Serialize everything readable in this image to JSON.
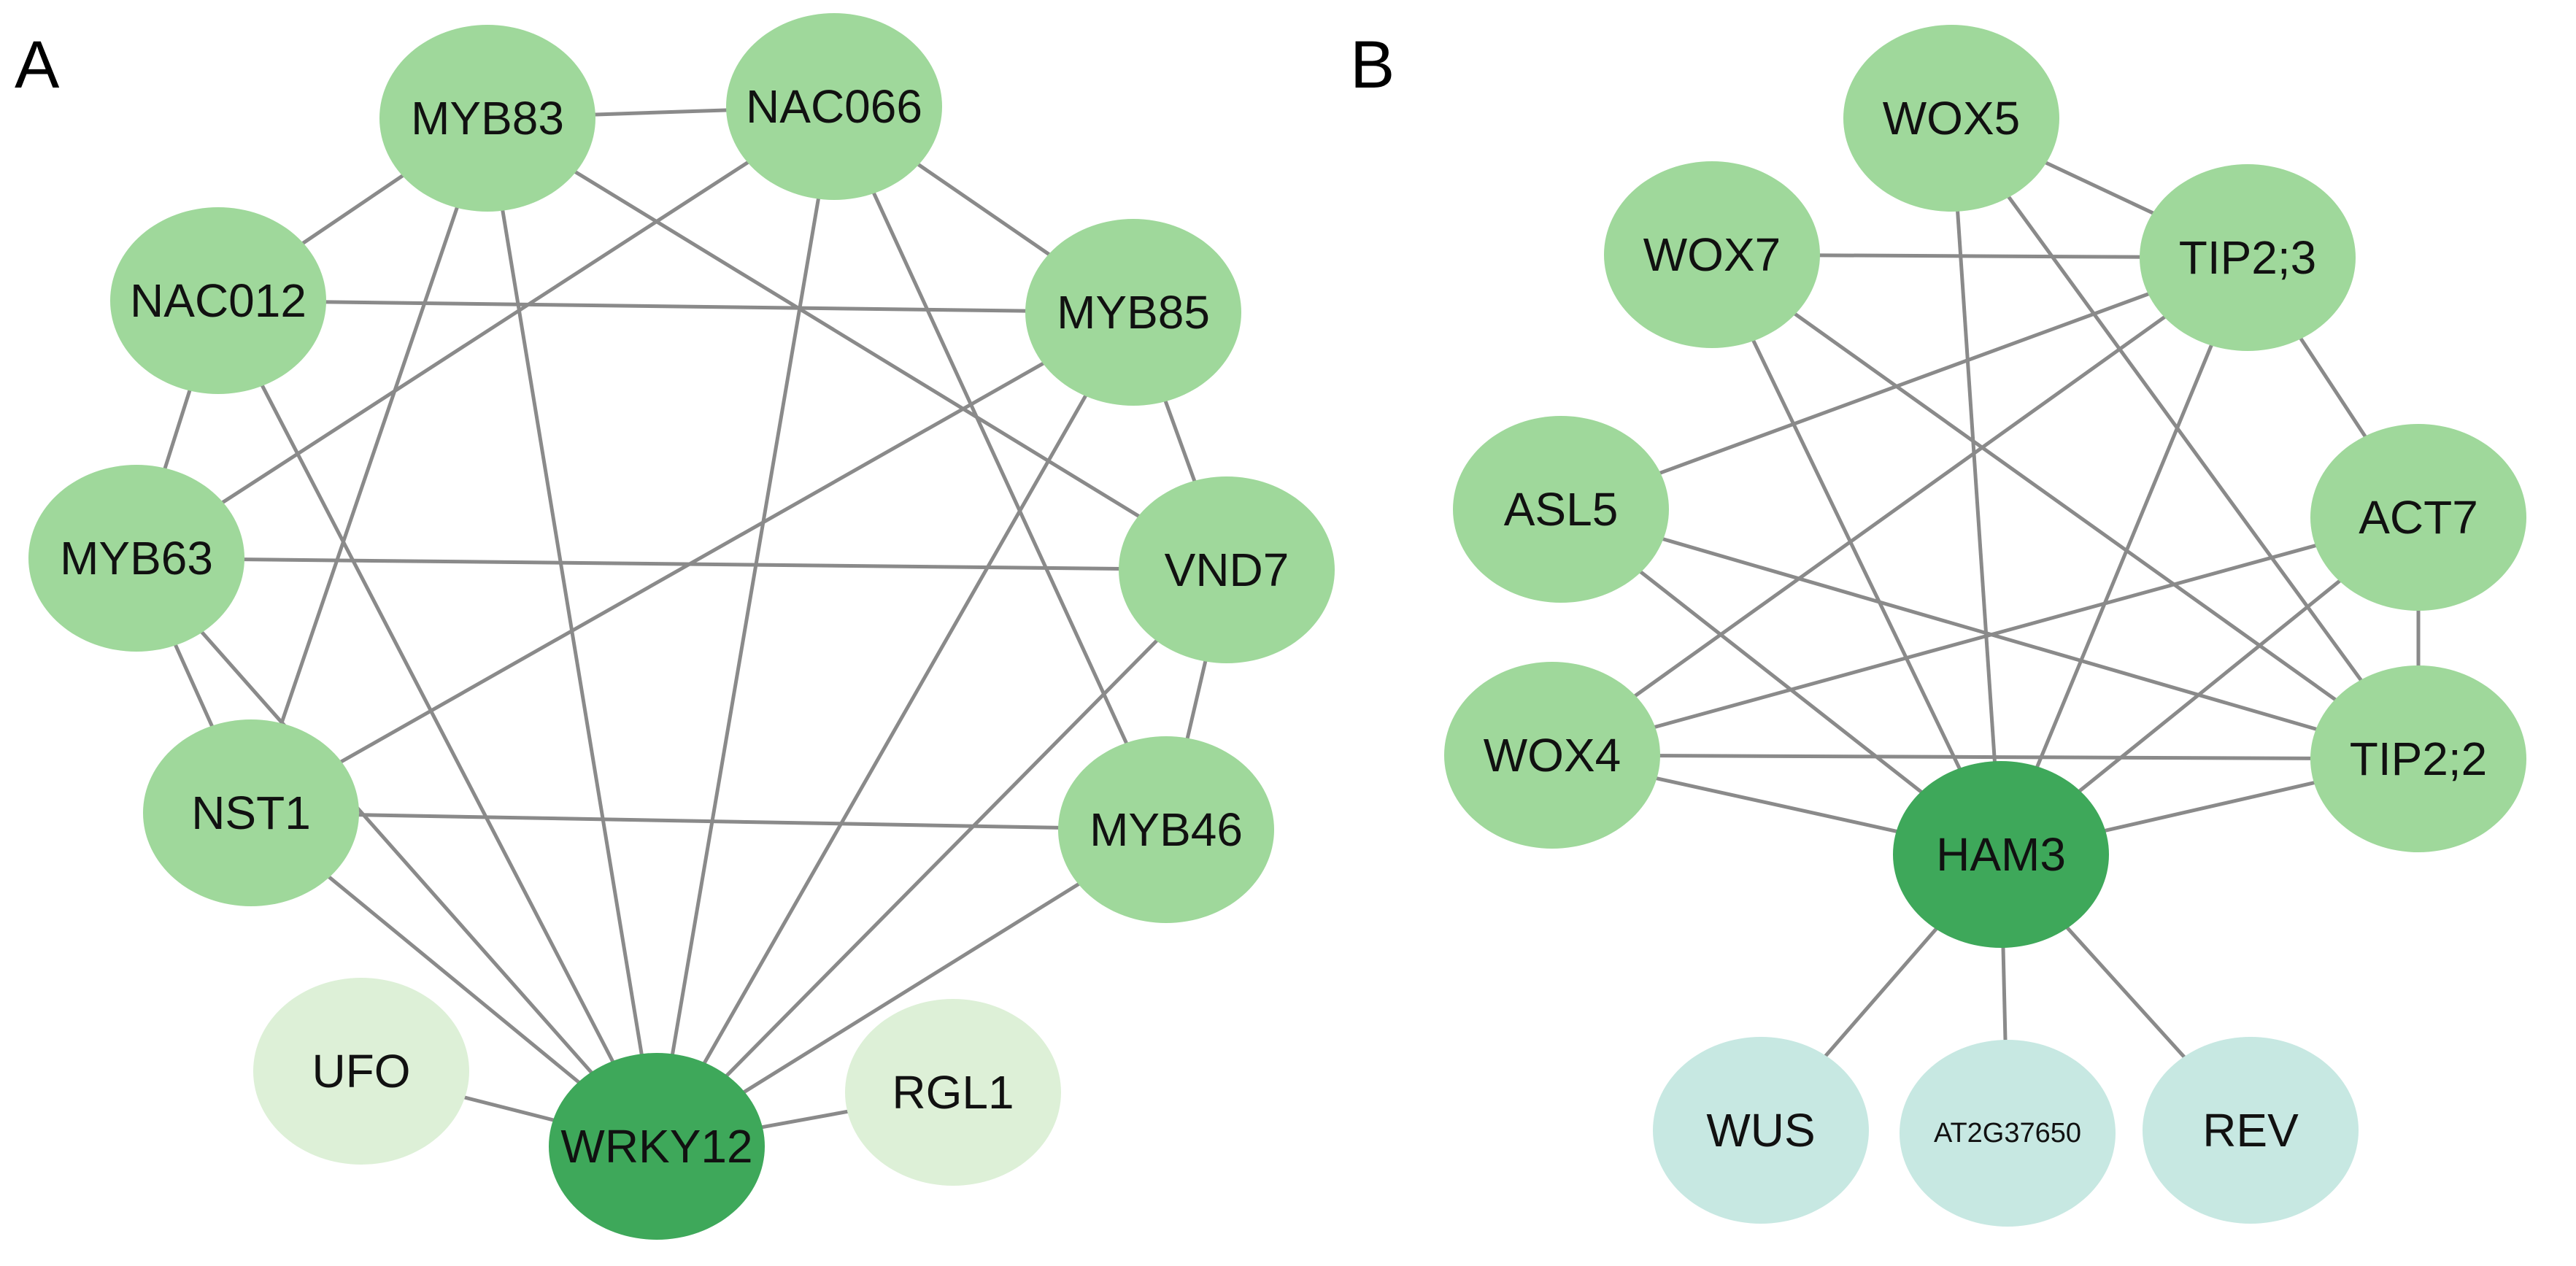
{
  "colors": {
    "node": "#9fd89b",
    "hub": "#3ea85a",
    "pale_green": "#ddf0d7",
    "pale_teal": "#c7e8e2",
    "edge": "#8a8a8a"
  },
  "panels": [
    {
      "label": "A",
      "nodes": [
        {
          "id": "MYB83",
          "type": "node"
        },
        {
          "id": "NAC066",
          "type": "node"
        },
        {
          "id": "NAC012",
          "type": "node"
        },
        {
          "id": "MYB85",
          "type": "node"
        },
        {
          "id": "MYB63",
          "type": "node"
        },
        {
          "id": "VND7",
          "type": "node"
        },
        {
          "id": "NST1",
          "type": "node"
        },
        {
          "id": "MYB46",
          "type": "node"
        },
        {
          "id": "UFO",
          "type": "pale_green"
        },
        {
          "id": "WRKY12",
          "type": "hub"
        },
        {
          "id": "RGL1",
          "type": "pale_green"
        }
      ],
      "edges": [
        [
          "MYB83",
          "NAC066"
        ],
        [
          "MYB83",
          "NAC012"
        ],
        [
          "MYB83",
          "NST1"
        ],
        [
          "MYB83",
          "WRKY12"
        ],
        [
          "MYB83",
          "VND7"
        ],
        [
          "NAC066",
          "MYB63"
        ],
        [
          "NAC066",
          "MYB85"
        ],
        [
          "NAC066",
          "WRKY12"
        ],
        [
          "NAC066",
          "MYB46"
        ],
        [
          "NAC012",
          "MYB85"
        ],
        [
          "NAC012",
          "MYB63"
        ],
        [
          "NAC012",
          "WRKY12"
        ],
        [
          "MYB85",
          "NST1"
        ],
        [
          "MYB85",
          "WRKY12"
        ],
        [
          "MYB85",
          "VND7"
        ],
        [
          "MYB63",
          "VND7"
        ],
        [
          "MYB63",
          "NST1"
        ],
        [
          "MYB63",
          "WRKY12"
        ],
        [
          "VND7",
          "MYB46"
        ],
        [
          "VND7",
          "WRKY12"
        ],
        [
          "MYB46",
          "WRKY12"
        ],
        [
          "NST1",
          "MYB46"
        ],
        [
          "NST1",
          "WRKY12"
        ],
        [
          "UFO",
          "WRKY12"
        ],
        [
          "RGL1",
          "WRKY12"
        ]
      ]
    },
    {
      "label": "B",
      "nodes": [
        {
          "id": "WOX5",
          "type": "node"
        },
        {
          "id": "WOX7",
          "type": "node"
        },
        {
          "id": "TIP2;3",
          "type": "node"
        },
        {
          "id": "ASL5",
          "type": "node"
        },
        {
          "id": "ACT7",
          "type": "node"
        },
        {
          "id": "WOX4",
          "type": "node"
        },
        {
          "id": "TIP2;2",
          "type": "node"
        },
        {
          "id": "HAM3",
          "type": "hub"
        },
        {
          "id": "WUS",
          "type": "pale_teal"
        },
        {
          "id": "AT2G37650",
          "type": "pale_teal"
        },
        {
          "id": "REV",
          "type": "pale_teal"
        }
      ],
      "edges": [
        [
          "WOX5",
          "TIP2;3"
        ],
        [
          "WOX5",
          "HAM3"
        ],
        [
          "WOX5",
          "TIP2;2"
        ],
        [
          "WOX7",
          "TIP2;3"
        ],
        [
          "WOX7",
          "HAM3"
        ],
        [
          "WOX7",
          "TIP2;2"
        ],
        [
          "TIP2;3",
          "ASL5"
        ],
        [
          "TIP2;3",
          "WOX4"
        ],
        [
          "TIP2;3",
          "HAM3"
        ],
        [
          "TIP2;3",
          "ACT7"
        ],
        [
          "ASL5",
          "TIP2;2"
        ],
        [
          "ASL5",
          "HAM3"
        ],
        [
          "ACT7",
          "WOX4"
        ],
        [
          "ACT7",
          "HAM3"
        ],
        [
          "ACT7",
          "TIP2;2"
        ],
        [
          "WOX4",
          "TIP2;2"
        ],
        [
          "WOX4",
          "HAM3"
        ],
        [
          "HAM3",
          "TIP2;2"
        ],
        [
          "HAM3",
          "WUS"
        ],
        [
          "HAM3",
          "AT2G37650"
        ],
        [
          "HAM3",
          "REV"
        ]
      ]
    }
  ]
}
